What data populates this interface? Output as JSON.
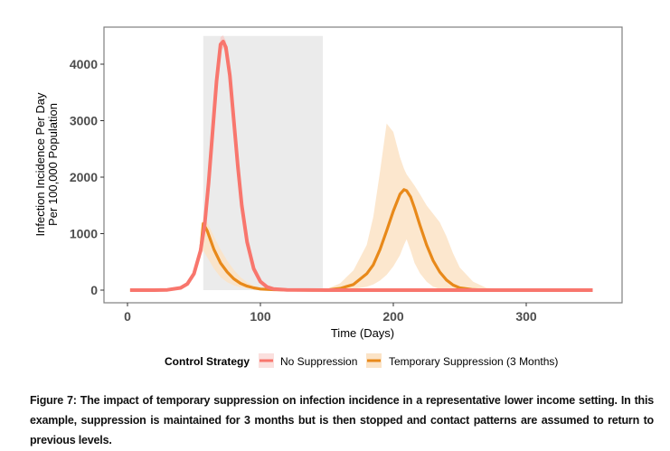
{
  "chart_data": {
    "type": "line",
    "title": "",
    "xlabel": "Time (Days)",
    "ylabel_lines": [
      "Infection Incidence Per Day",
      "Per 100,000 Population"
    ],
    "xlim": [
      -2,
      372
    ],
    "ylim": [
      -200,
      4650
    ],
    "xticks": [
      0,
      100,
      200,
      300
    ],
    "xtick_labels": [
      "0",
      "100",
      "200",
      "300"
    ],
    "yticks": [
      0,
      1000,
      2000,
      3000,
      4000
    ],
    "ytick_labels": [
      "0",
      "1000",
      "2000",
      "3000",
      "4000"
    ],
    "grid": false,
    "legend": {
      "position": "bottom",
      "title": "Control Strategy",
      "entries": [
        {
          "label": "No Suppression",
          "color": "#F8766D"
        },
        {
          "label": "Temporary Suppression (3 Months)",
          "color": "#E8891A"
        }
      ]
    },
    "shaded_region": {
      "x_start": 57,
      "x_end": 147,
      "y_top": 4500,
      "color": "#EBEBEB",
      "label": "suppression period"
    },
    "series": [
      {
        "name": "No Suppression",
        "color": "#F8766D",
        "band_color": "#F8C8C4",
        "x": [
          2,
          20,
          30,
          40,
          45,
          50,
          55,
          58,
          61,
          64,
          67,
          70,
          72,
          74,
          77,
          80,
          83,
          86,
          90,
          95,
          100,
          105,
          110,
          120,
          150,
          200,
          250,
          300,
          350
        ],
        "y": [
          0,
          0,
          5,
          40,
          110,
          290,
          700,
          1150,
          1900,
          2800,
          3700,
          4350,
          4400,
          4300,
          3800,
          3000,
          2200,
          1500,
          850,
          380,
          150,
          55,
          20,
          5,
          0,
          0,
          0,
          0,
          0
        ],
        "lower": [
          0,
          0,
          3,
          30,
          90,
          250,
          620,
          1030,
          1750,
          2650,
          3550,
          4220,
          4290,
          4190,
          3680,
          2880,
          2090,
          1410,
          790,
          340,
          125,
          45,
          15,
          3,
          0,
          0,
          0,
          0,
          0
        ],
        "upper": [
          0,
          0,
          8,
          50,
          130,
          330,
          780,
          1270,
          2050,
          2950,
          3850,
          4480,
          4510,
          4410,
          3920,
          3120,
          2310,
          1590,
          910,
          420,
          175,
          65,
          25,
          7,
          0,
          0,
          0,
          0,
          0
        ]
      },
      {
        "name": "Temporary Suppression (3 Months)",
        "color": "#E8891A",
        "band_color": "#FBE3C6",
        "x": [
          2,
          20,
          30,
          40,
          45,
          50,
          55,
          57,
          60,
          65,
          70,
          75,
          80,
          85,
          90,
          95,
          100,
          110,
          120,
          140,
          150,
          160,
          170,
          180,
          185,
          190,
          195,
          200,
          205,
          208,
          210,
          213,
          216,
          220,
          225,
          230,
          235,
          240,
          245,
          250,
          260,
          270,
          300,
          350
        ],
        "y": [
          0,
          0,
          5,
          40,
          110,
          290,
          700,
          1180,
          1050,
          720,
          480,
          320,
          200,
          120,
          70,
          40,
          20,
          8,
          3,
          0,
          3,
          30,
          100,
          290,
          450,
          720,
          1050,
          1400,
          1700,
          1780,
          1760,
          1650,
          1450,
          1150,
          800,
          520,
          320,
          180,
          90,
          40,
          10,
          0,
          0,
          0
        ],
        "lower": [
          0,
          0,
          3,
          30,
          90,
          250,
          620,
          700,
          580,
          380,
          230,
          140,
          85,
          50,
          30,
          15,
          8,
          3,
          0,
          0,
          0,
          5,
          20,
          60,
          100,
          170,
          270,
          420,
          620,
          800,
          900,
          700,
          480,
          300,
          150,
          60,
          20,
          5,
          0,
          0,
          0,
          0,
          0,
          0
        ],
        "upper": [
          0,
          0,
          8,
          50,
          130,
          330,
          780,
          1260,
          1200,
          950,
          720,
          520,
          360,
          230,
          140,
          80,
          40,
          15,
          6,
          0,
          20,
          120,
          350,
          800,
          1300,
          2100,
          2950,
          2800,
          2350,
          2150,
          2050,
          1950,
          1850,
          1700,
          1500,
          1350,
          1200,
          950,
          650,
          400,
          150,
          40,
          0,
          0
        ]
      }
    ]
  },
  "caption": "Figure 7: The impact of temporary suppression on infection incidence in a representative lower income setting. In this example, suppression is maintained for 3 months but is then stopped and contact patterns are assumed to return to previous levels."
}
